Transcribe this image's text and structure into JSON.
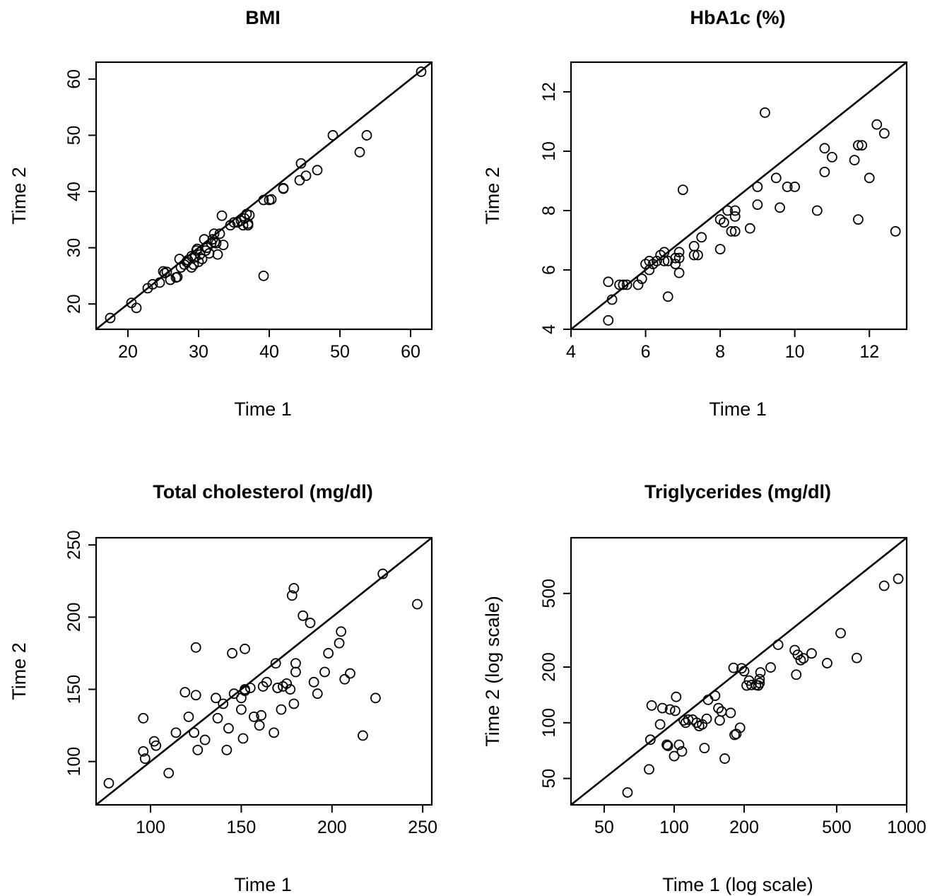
{
  "chart_data": [
    {
      "id": "bmi",
      "type": "scatter",
      "title": "BMI",
      "xlabel": "Time 1",
      "ylabel": "Time 2",
      "xlim": [
        15.5,
        63
      ],
      "ylim": [
        15.5,
        63
      ],
      "xticks": [
        20,
        30,
        40,
        50,
        60
      ],
      "yticks": [
        20,
        30,
        40,
        50,
        60
      ],
      "log": false,
      "identity_line": true,
      "x": [
        17.5,
        20.5,
        21.2,
        22.8,
        23.5,
        24.5,
        25.0,
        25.2,
        25.5,
        26.0,
        26.8,
        27.0,
        27.3,
        27.5,
        28.0,
        28.3,
        28.5,
        29.0,
        29.0,
        29.3,
        29.5,
        29.7,
        29.8,
        30.0,
        30.2,
        30.5,
        30.8,
        31.0,
        31.2,
        31.5,
        31.8,
        32.0,
        32.2,
        32.3,
        32.5,
        32.7,
        33.0,
        33.3,
        33.5,
        34.5,
        35.0,
        35.5,
        36.0,
        36.3,
        36.5,
        36.8,
        37.0,
        37.0,
        37.2,
        39.2,
        39.2,
        40.0,
        40.3,
        42.0,
        42.0,
        44.3,
        44.5,
        45.2,
        46.8,
        49.0,
        52.8,
        53.8,
        61.5
      ],
      "y": [
        17.5,
        20.2,
        19.3,
        22.8,
        23.5,
        23.8,
        25.8,
        25.5,
        25.7,
        24.3,
        24.7,
        24.8,
        28.0,
        26.5,
        27.0,
        27.5,
        27.8,
        26.5,
        28.5,
        27.0,
        28.3,
        29.5,
        29.8,
        27.5,
        28.8,
        28.0,
        31.5,
        29.5,
        30.0,
        29.0,
        30.8,
        31.5,
        32.5,
        31.0,
        30.8,
        28.8,
        32.5,
        35.7,
        30.5,
        34.0,
        34.5,
        34.5,
        34.8,
        34.0,
        35.2,
        36.0,
        34.0,
        34.3,
        35.8,
        25.0,
        38.5,
        38.5,
        38.6,
        40.5,
        40.6,
        42.0,
        45.0,
        42.8,
        43.8,
        50.0,
        47.0,
        50.0,
        61.3
      ]
    },
    {
      "id": "hba1c",
      "type": "scatter",
      "title": "HbA1c (%)",
      "xlabel": "Time 1",
      "ylabel": "Time 2",
      "xlim": [
        4,
        13
      ],
      "ylim": [
        4,
        13
      ],
      "xticks": [
        4,
        6,
        8,
        10,
        12
      ],
      "yticks": [
        4,
        6,
        8,
        10,
        12
      ],
      "log": false,
      "identity_line": true,
      "x": [
        5.0,
        5.0,
        5.1,
        5.3,
        5.4,
        5.5,
        5.8,
        5.9,
        6.0,
        6.1,
        6.1,
        6.2,
        6.3,
        6.4,
        6.5,
        6.5,
        6.6,
        6.6,
        6.8,
        6.8,
        6.9,
        6.9,
        6.9,
        7.0,
        7.3,
        7.3,
        7.4,
        7.5,
        8.0,
        8.0,
        8.1,
        8.2,
        8.3,
        8.4,
        8.4,
        8.4,
        8.8,
        9.0,
        9.0,
        9.2,
        9.5,
        9.6,
        9.8,
        10.0,
        10.6,
        10.8,
        10.8,
        11.0,
        11.6,
        11.7,
        11.7,
        11.8,
        12.0,
        12.2,
        12.4,
        12.7
      ],
      "y": [
        5.6,
        4.3,
        5.0,
        5.5,
        5.5,
        5.5,
        5.5,
        5.7,
        6.2,
        6.0,
        6.3,
        6.2,
        6.3,
        6.5,
        6.6,
        6.3,
        5.1,
        6.3,
        6.2,
        6.4,
        6.6,
        6.4,
        5.9,
        8.7,
        6.8,
        6.5,
        6.5,
        7.1,
        7.7,
        6.7,
        7.6,
        8.0,
        7.3,
        8.0,
        7.8,
        7.3,
        7.4,
        8.8,
        8.2,
        11.3,
        9.1,
        8.1,
        8.8,
        8.8,
        8.0,
        10.1,
        9.3,
        9.8,
        9.7,
        10.2,
        7.7,
        10.2,
        9.1,
        10.9,
        10.6,
        7.3
      ]
    },
    {
      "id": "cholesterol",
      "type": "scatter",
      "title": "Total cholesterol (mg/dl)",
      "xlabel": "Time 1",
      "ylabel": "Time 2",
      "xlim": [
        70,
        255
      ],
      "ylim": [
        70,
        255
      ],
      "xticks": [
        100,
        150,
        200,
        250
      ],
      "yticks": [
        100,
        150,
        200,
        250
      ],
      "log": false,
      "identity_line": true,
      "x": [
        77,
        96,
        96,
        97,
        102,
        103,
        110,
        114,
        119,
        121,
        124,
        125,
        125,
        126,
        130,
        136,
        137,
        140,
        142,
        143,
        145,
        146,
        150,
        150,
        151,
        152,
        152,
        152,
        155,
        157,
        160,
        161,
        162,
        164,
        168,
        169,
        170,
        170,
        172,
        173,
        175,
        177,
        178,
        179,
        179,
        180,
        180,
        184,
        188,
        190,
        192,
        196,
        198,
        204,
        205,
        207,
        210,
        217,
        224,
        228,
        247
      ],
      "y": [
        85,
        130,
        107,
        102,
        114,
        111,
        92,
        120,
        148,
        131,
        120,
        146,
        179,
        108,
        115,
        144,
        130,
        140,
        108,
        123,
        175,
        147,
        136,
        144,
        116,
        150,
        149,
        178,
        151,
        131,
        125,
        132,
        152,
        155,
        120,
        168,
        151,
        151,
        136,
        152,
        154,
        150,
        215,
        220,
        140,
        162,
        168,
        201,
        196,
        155,
        147,
        162,
        175,
        182,
        190,
        157,
        161,
        118,
        144,
        230,
        209
      ]
    },
    {
      "id": "triglycerides",
      "type": "scatter",
      "title": "Triglycerides (mg/dl)",
      "xlabel": "Time 1 (log scale)",
      "ylabel": "Time 2 (log scale)",
      "xlim": [
        36,
        1000
      ],
      "ylim": [
        36,
        1000
      ],
      "xticks": [
        50,
        100,
        200,
        500,
        1000
      ],
      "yticks": [
        50,
        100,
        200,
        500
      ],
      "log": true,
      "identity_line": true,
      "x": [
        63,
        78,
        79,
        80,
        87,
        89,
        93,
        93,
        94,
        96,
        100,
        101,
        102,
        105,
        108,
        110,
        112,
        115,
        120,
        125,
        128,
        132,
        135,
        138,
        140,
        150,
        155,
        157,
        160,
        165,
        175,
        180,
        182,
        185,
        192,
        195,
        200,
        205,
        210,
        215,
        225,
        230,
        233,
        233,
        235,
        260,
        280,
        330,
        335,
        340,
        350,
        360,
        390,
        455,
        520,
        610,
        800,
        920
      ],
      "y": [
        42,
        56,
        81,
        124,
        98,
        120,
        76,
        76,
        75,
        118,
        66,
        116,
        138,
        76,
        70,
        103,
        100,
        104,
        104,
        100,
        96,
        98,
        73,
        105,
        133,
        140,
        120,
        103,
        115,
        64,
        113,
        198,
        86,
        87,
        94,
        197,
        190,
        159,
        169,
        160,
        160,
        159,
        164,
        172,
        187,
        199,
        264,
        247,
        182,
        233,
        218,
        223,
        237,
        210,
        305,
        224,
        550,
        600
      ]
    }
  ]
}
